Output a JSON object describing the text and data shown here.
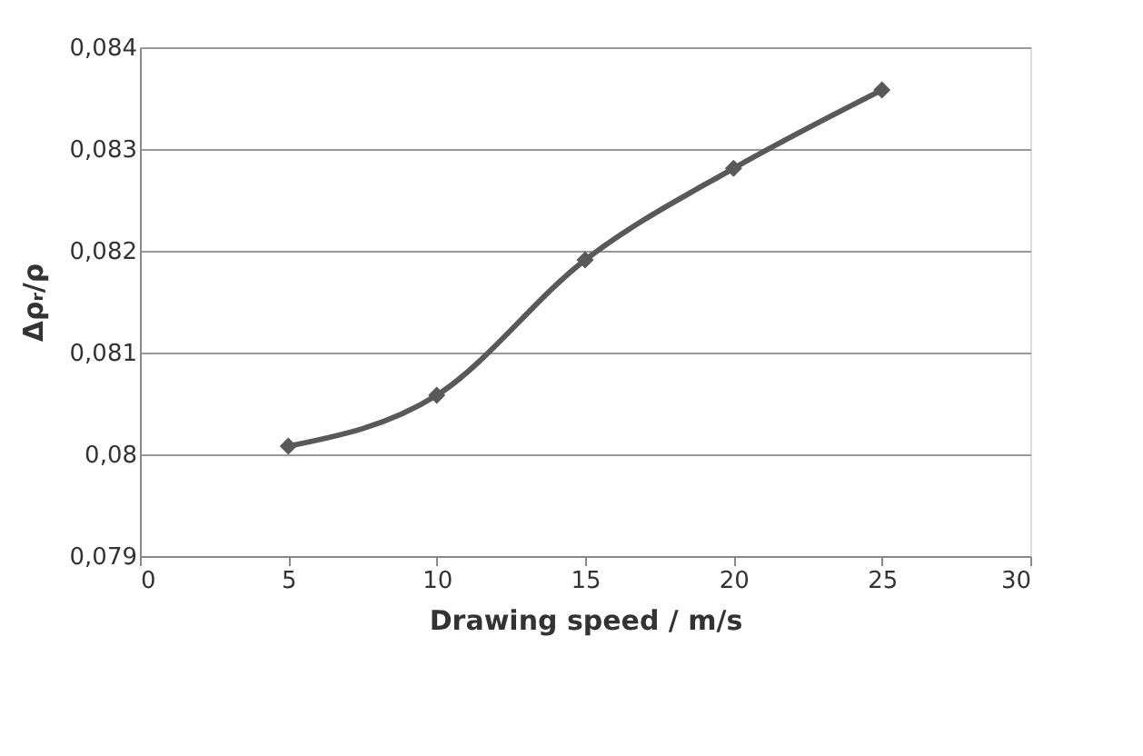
{
  "chart_data": {
    "type": "line",
    "xlabel": "Drawing speed / m/s",
    "ylabel": "Δρᵣ/ρ",
    "x": [
      5,
      10,
      15,
      20,
      25
    ],
    "series": [
      {
        "color": "#595959",
        "values": [
          0.08008,
          0.08058,
          0.08191,
          0.08281,
          0.08358
        ]
      }
    ],
    "xlim": [
      0,
      30
    ],
    "xticks": [
      0,
      5,
      10,
      15,
      20,
      25,
      30
    ],
    "ylim": [
      0.079,
      0.084
    ],
    "yticks": [
      {
        "value": 0.079,
        "label": "0,079"
      },
      {
        "value": 0.08,
        "label": "0,08"
      },
      {
        "value": 0.081,
        "label": "0,081"
      },
      {
        "value": 0.082,
        "label": "0,082"
      },
      {
        "value": 0.083,
        "label": "0,083"
      },
      {
        "value": 0.084,
        "label": "0,084"
      }
    ],
    "grid": "y",
    "marker": "diamond",
    "line_style": "solid"
  }
}
